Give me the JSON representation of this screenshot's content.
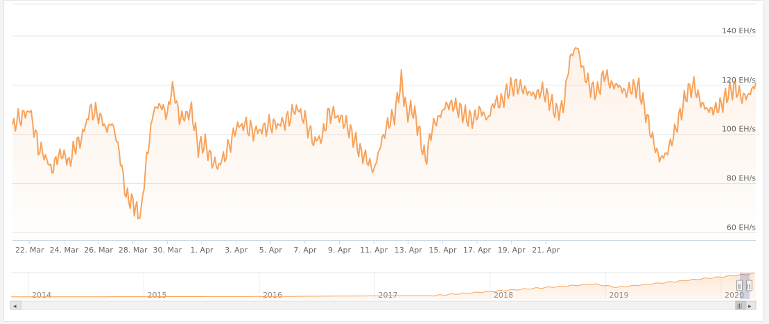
{
  "chart_data": {
    "type": "area",
    "title": "",
    "xlabel": "",
    "ylabel": "",
    "unit": "EH/s",
    "ylim": [
      57,
      153
    ],
    "y_ticks": [
      {
        "value": 60,
        "label": "60 EH/s"
      },
      {
        "value": 80,
        "label": "80 EH/s"
      },
      {
        "value": 100,
        "label": "100 EH/s"
      },
      {
        "value": 120,
        "label": "120 EH/s"
      },
      {
        "value": 140,
        "label": "140 EH/s"
      }
    ],
    "x_ticks": [
      "22. Mar",
      "24. Mar",
      "26. Mar",
      "28. Mar",
      "30. Mar",
      "1. Apr",
      "3. Apr",
      "5. Apr",
      "7. Apr",
      "9. Apr",
      "11. Apr",
      "13. Apr",
      "15. Apr",
      "17. Apr",
      "19. Apr",
      "21. Apr"
    ],
    "x_range": [
      "21. Mar",
      "21. Apr"
    ],
    "grid": true,
    "legend": "none",
    "series": [
      {
        "color": "#f7a35c",
        "values": [
          [
            0.0,
            104
          ],
          [
            1.0,
            110
          ],
          [
            1.5,
            95
          ],
          [
            2.0,
            90
          ],
          [
            2.3,
            85
          ],
          [
            2.6,
            91
          ],
          [
            3.0,
            92
          ],
          [
            3.3,
            88
          ],
          [
            3.6,
            95
          ],
          [
            4.0,
            98
          ],
          [
            4.5,
            110
          ],
          [
            5.0,
            108
          ],
          [
            5.5,
            102
          ],
          [
            5.8,
            105
          ],
          [
            6.2,
            93
          ],
          [
            6.6,
            75
          ],
          [
            7.0,
            72
          ],
          [
            7.3,
            68
          ],
          [
            7.5,
            70
          ],
          [
            7.8,
            90
          ],
          [
            8.2,
            110
          ],
          [
            8.6,
            112
          ],
          [
            9.0,
            108
          ],
          [
            9.3,
            120
          ],
          [
            9.7,
            107
          ],
          [
            10.0,
            107
          ],
          [
            10.4,
            110
          ],
          [
            10.8,
            95
          ],
          [
            11.2,
            96
          ],
          [
            11.6,
            89
          ],
          [
            12.0,
            87
          ],
          [
            12.6,
            95
          ],
          [
            13.0,
            103
          ],
          [
            13.5,
            104
          ],
          [
            14.0,
            101
          ],
          [
            14.5,
            102
          ],
          [
            15.0,
            104
          ],
          [
            15.5,
            104
          ],
          [
            16.0,
            106
          ],
          [
            16.5,
            111
          ],
          [
            17.0,
            106
          ],
          [
            17.5,
            97
          ],
          [
            18.0,
            99
          ],
          [
            18.4,
            109
          ],
          [
            19.0,
            107
          ],
          [
            19.4,
            104
          ],
          [
            19.8,
            99
          ],
          [
            20.2,
            93
          ],
          [
            20.6,
            90
          ],
          [
            21.0,
            85
          ],
          [
            21.4,
            96
          ],
          [
            21.8,
            104
          ],
          [
            22.2,
            108
          ],
          [
            22.6,
            122
          ],
          [
            22.9,
            109
          ],
          [
            23.3,
            110
          ],
          [
            23.6,
            102
          ],
          [
            24.0,
            89
          ],
          [
            24.4,
            103
          ],
          [
            24.8,
            107
          ],
          [
            25.2,
            112
          ],
          [
            25.6,
            112
          ],
          [
            26.0,
            110
          ],
          [
            26.4,
            107
          ],
          [
            26.8,
            106
          ],
          [
            27.2,
            110
          ],
          [
            27.6,
            106
          ],
          [
            28.0,
            113
          ],
          [
            28.4,
            113
          ],
          [
            28.8,
            118
          ],
          [
            29.2,
            120
          ],
          [
            29.6,
            119
          ],
          [
            30.0,
            117
          ],
          [
            30.4,
            116
          ],
          [
            30.8,
            118
          ],
          [
            31.2,
            114
          ],
          [
            31.6,
            109
          ],
          [
            32.0,
            111
          ],
          [
            32.4,
            131
          ],
          [
            32.8,
            136
          ],
          [
            33.2,
            125
          ],
          [
            33.6,
            119
          ],
          [
            34.0,
            117
          ],
          [
            34.4,
            125
          ],
          [
            34.8,
            120
          ],
          [
            35.2,
            120
          ],
          [
            35.6,
            117
          ],
          [
            36.0,
            119
          ],
          [
            36.4,
            119
          ],
          [
            36.8,
            109
          ],
          [
            37.2,
            98
          ],
          [
            37.6,
            90
          ],
          [
            38.0,
            92
          ],
          [
            38.4,
            99
          ],
          [
            38.8,
            108
          ],
          [
            39.2,
            117
          ],
          [
            39.6,
            120
          ],
          [
            40.0,
            113
          ],
          [
            40.4,
            110
          ],
          [
            40.8,
            110
          ],
          [
            41.2,
            112
          ],
          [
            41.6,
            117
          ],
          [
            42.0,
            119
          ],
          [
            42.4,
            115
          ],
          [
            42.8,
            116
          ],
          [
            43.2,
            121
          ]
        ]
      }
    ],
    "navigator": {
      "year_labels": [
        "2014",
        "2015",
        "2016",
        "2017",
        "2018",
        "2019",
        "2020"
      ]
    }
  },
  "ui": {
    "scroll_left": "◂",
    "scroll_right": "▸",
    "scroll_grip": "|||",
    "handle_grip": "||"
  }
}
